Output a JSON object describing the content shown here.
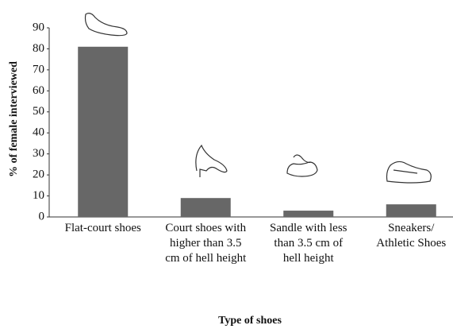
{
  "chart_data": {
    "type": "bar",
    "x_label": "Type of shoes",
    "y_label": "% of female interviewed",
    "categories": [
      "Flat-court shoes",
      "Court shoes with higher than 3.5 cm of hell height",
      "Sandle with less than 3.5 cm of hell height",
      "Sneakers/ Athletic Shoes"
    ],
    "values": [
      81,
      9,
      3,
      6
    ],
    "color": "#676767",
    "ylim": [
      0,
      90
    ],
    "yticks": [
      0,
      10,
      20,
      30,
      40,
      50,
      60,
      70,
      80,
      90
    ],
    "grid": false
  }
}
